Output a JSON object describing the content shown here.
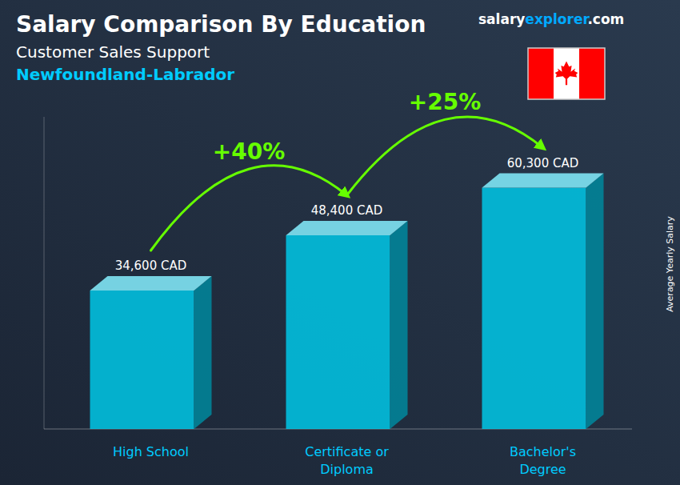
{
  "chart_data": {
    "type": "bar",
    "title": "Salary Comparison By Education",
    "subtitle": "Customer Sales Support",
    "ylabel": "Average Yearly Salary",
    "annotations": [
      "Newfoundland-Labrador",
      "+40%",
      "+25%",
      "salary",
      "explorer",
      ".com"
    ],
    "categories": [
      "High School",
      "Certificate or\nDiploma",
      "Bachelor's\nDegree"
    ],
    "values": [
      34600,
      48400,
      60300
    ],
    "value_labels": [
      "34,600 CAD",
      "48,400 CAD",
      "60,300 CAD"
    ],
    "data_labels": true,
    "color": "#00c8e8",
    "ylim": [
      0,
      78000
    ],
    "tick_labels": "x"
  }
}
